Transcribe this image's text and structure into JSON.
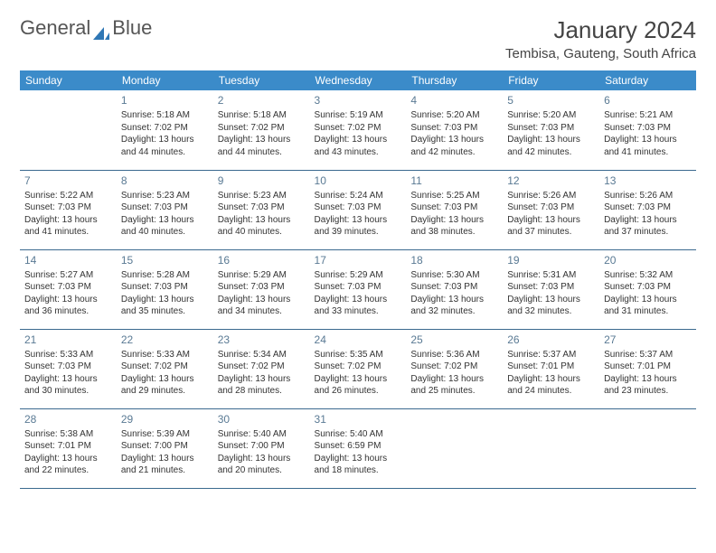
{
  "logo": {
    "text1": "General",
    "text2": "Blue",
    "accent_color": "#2f77b5"
  },
  "title": "January 2024",
  "location": "Tembisa, Gauteng, South Africa",
  "colors": {
    "header_bg": "#3b8bc9",
    "header_text": "#ffffff",
    "cell_border": "#3b6a8f",
    "daynum_color": "#5a7a94",
    "body_text": "#333333"
  },
  "weekdays": [
    "Sunday",
    "Monday",
    "Tuesday",
    "Wednesday",
    "Thursday",
    "Friday",
    "Saturday"
  ],
  "weeks": [
    [
      null,
      {
        "n": "1",
        "sr": "5:18 AM",
        "ss": "7:02 PM",
        "dl": "13 hours and 44 minutes."
      },
      {
        "n": "2",
        "sr": "5:18 AM",
        "ss": "7:02 PM",
        "dl": "13 hours and 44 minutes."
      },
      {
        "n": "3",
        "sr": "5:19 AM",
        "ss": "7:02 PM",
        "dl": "13 hours and 43 minutes."
      },
      {
        "n": "4",
        "sr": "5:20 AM",
        "ss": "7:03 PM",
        "dl": "13 hours and 42 minutes."
      },
      {
        "n": "5",
        "sr": "5:20 AM",
        "ss": "7:03 PM",
        "dl": "13 hours and 42 minutes."
      },
      {
        "n": "6",
        "sr": "5:21 AM",
        "ss": "7:03 PM",
        "dl": "13 hours and 41 minutes."
      }
    ],
    [
      {
        "n": "7",
        "sr": "5:22 AM",
        "ss": "7:03 PM",
        "dl": "13 hours and 41 minutes."
      },
      {
        "n": "8",
        "sr": "5:23 AM",
        "ss": "7:03 PM",
        "dl": "13 hours and 40 minutes."
      },
      {
        "n": "9",
        "sr": "5:23 AM",
        "ss": "7:03 PM",
        "dl": "13 hours and 40 minutes."
      },
      {
        "n": "10",
        "sr": "5:24 AM",
        "ss": "7:03 PM",
        "dl": "13 hours and 39 minutes."
      },
      {
        "n": "11",
        "sr": "5:25 AM",
        "ss": "7:03 PM",
        "dl": "13 hours and 38 minutes."
      },
      {
        "n": "12",
        "sr": "5:26 AM",
        "ss": "7:03 PM",
        "dl": "13 hours and 37 minutes."
      },
      {
        "n": "13",
        "sr": "5:26 AM",
        "ss": "7:03 PM",
        "dl": "13 hours and 37 minutes."
      }
    ],
    [
      {
        "n": "14",
        "sr": "5:27 AM",
        "ss": "7:03 PM",
        "dl": "13 hours and 36 minutes."
      },
      {
        "n": "15",
        "sr": "5:28 AM",
        "ss": "7:03 PM",
        "dl": "13 hours and 35 minutes."
      },
      {
        "n": "16",
        "sr": "5:29 AM",
        "ss": "7:03 PM",
        "dl": "13 hours and 34 minutes."
      },
      {
        "n": "17",
        "sr": "5:29 AM",
        "ss": "7:03 PM",
        "dl": "13 hours and 33 minutes."
      },
      {
        "n": "18",
        "sr": "5:30 AM",
        "ss": "7:03 PM",
        "dl": "13 hours and 32 minutes."
      },
      {
        "n": "19",
        "sr": "5:31 AM",
        "ss": "7:03 PM",
        "dl": "13 hours and 32 minutes."
      },
      {
        "n": "20",
        "sr": "5:32 AM",
        "ss": "7:03 PM",
        "dl": "13 hours and 31 minutes."
      }
    ],
    [
      {
        "n": "21",
        "sr": "5:33 AM",
        "ss": "7:03 PM",
        "dl": "13 hours and 30 minutes."
      },
      {
        "n": "22",
        "sr": "5:33 AM",
        "ss": "7:02 PM",
        "dl": "13 hours and 29 minutes."
      },
      {
        "n": "23",
        "sr": "5:34 AM",
        "ss": "7:02 PM",
        "dl": "13 hours and 28 minutes."
      },
      {
        "n": "24",
        "sr": "5:35 AM",
        "ss": "7:02 PM",
        "dl": "13 hours and 26 minutes."
      },
      {
        "n": "25",
        "sr": "5:36 AM",
        "ss": "7:02 PM",
        "dl": "13 hours and 25 minutes."
      },
      {
        "n": "26",
        "sr": "5:37 AM",
        "ss": "7:01 PM",
        "dl": "13 hours and 24 minutes."
      },
      {
        "n": "27",
        "sr": "5:37 AM",
        "ss": "7:01 PM",
        "dl": "13 hours and 23 minutes."
      }
    ],
    [
      {
        "n": "28",
        "sr": "5:38 AM",
        "ss": "7:01 PM",
        "dl": "13 hours and 22 minutes."
      },
      {
        "n": "29",
        "sr": "5:39 AM",
        "ss": "7:00 PM",
        "dl": "13 hours and 21 minutes."
      },
      {
        "n": "30",
        "sr": "5:40 AM",
        "ss": "7:00 PM",
        "dl": "13 hours and 20 minutes."
      },
      {
        "n": "31",
        "sr": "5:40 AM",
        "ss": "6:59 PM",
        "dl": "13 hours and 18 minutes."
      },
      null,
      null,
      null
    ]
  ],
  "labels": {
    "sunrise": "Sunrise: ",
    "sunset": "Sunset: ",
    "daylight": "Daylight: "
  }
}
